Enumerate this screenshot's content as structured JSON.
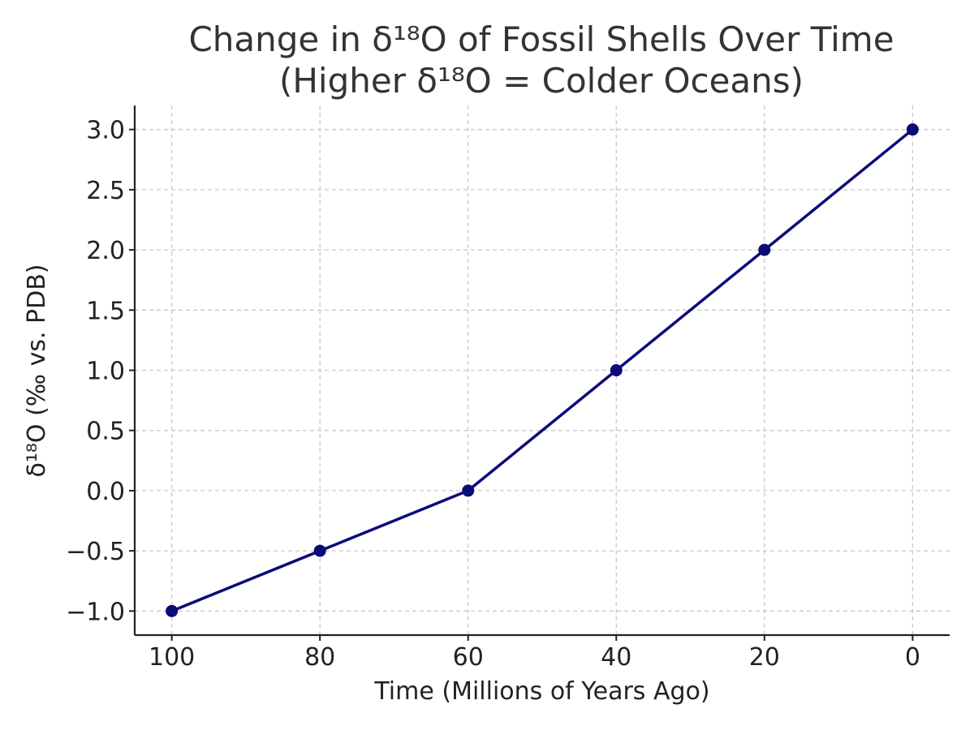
{
  "chart_data": {
    "type": "line",
    "title_lines": [
      "Change in δ¹⁸O of Fossil Shells Over Time",
      "(Higher δ¹⁸O = Colder Oceans)"
    ],
    "xlabel": "Time (Millions of Years Ago)",
    "ylabel": "δ¹⁸O (‰ vs. PDB)",
    "x": [
      100,
      80,
      60,
      40,
      20,
      0
    ],
    "series": [
      {
        "values": [
          -1.0,
          -0.5,
          0.0,
          1.0,
          2.0,
          3.0
        ],
        "color": "#0a0a78"
      }
    ],
    "x_ticks": [
      100,
      80,
      60,
      40,
      20,
      0
    ],
    "x_tick_labels": [
      "100",
      "80",
      "60",
      "40",
      "20",
      "0"
    ],
    "y_ticks": [
      -1.0,
      -0.5,
      0.0,
      0.5,
      1.0,
      1.5,
      2.0,
      2.5,
      3.0
    ],
    "y_tick_labels": [
      "−1.0",
      "−0.5",
      "0.0",
      "0.5",
      "1.0",
      "1.5",
      "2.0",
      "2.5",
      "3.0"
    ],
    "xlim": [
      105,
      -5
    ],
    "ylim": [
      -1.2,
      3.2
    ],
    "x_reversed": true,
    "grid": true,
    "grid_style": "dashed",
    "markers": true
  }
}
